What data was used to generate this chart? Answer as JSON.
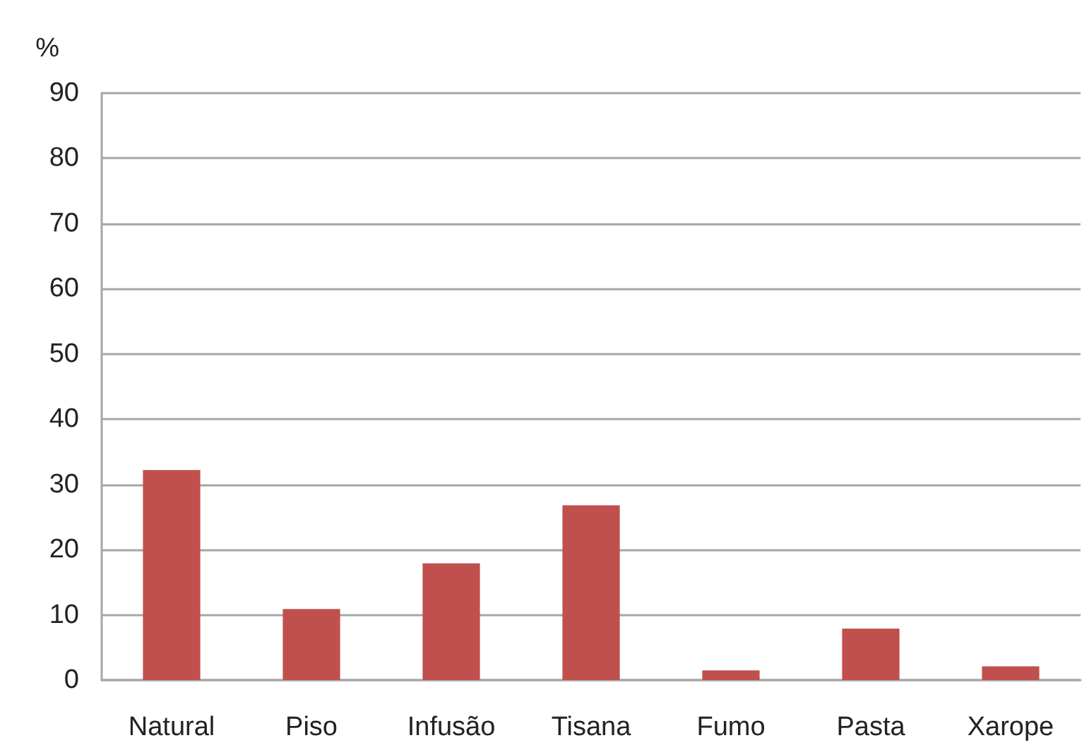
{
  "chart_data": {
    "type": "bar",
    "ylabel": "%",
    "categories": [
      "Natural",
      "Piso",
      "Infusão",
      "Tisana",
      "Fumo",
      "Pasta",
      "Xarope"
    ],
    "values": [
      32.2,
      10.9,
      17.9,
      26.8,
      1.5,
      7.9,
      2.1
    ],
    "color": "#c0504d",
    "ylim": [
      0,
      90
    ],
    "yticks": [
      0,
      10,
      20,
      30,
      40,
      50,
      60,
      70,
      80,
      90
    ],
    "grid": "y"
  }
}
